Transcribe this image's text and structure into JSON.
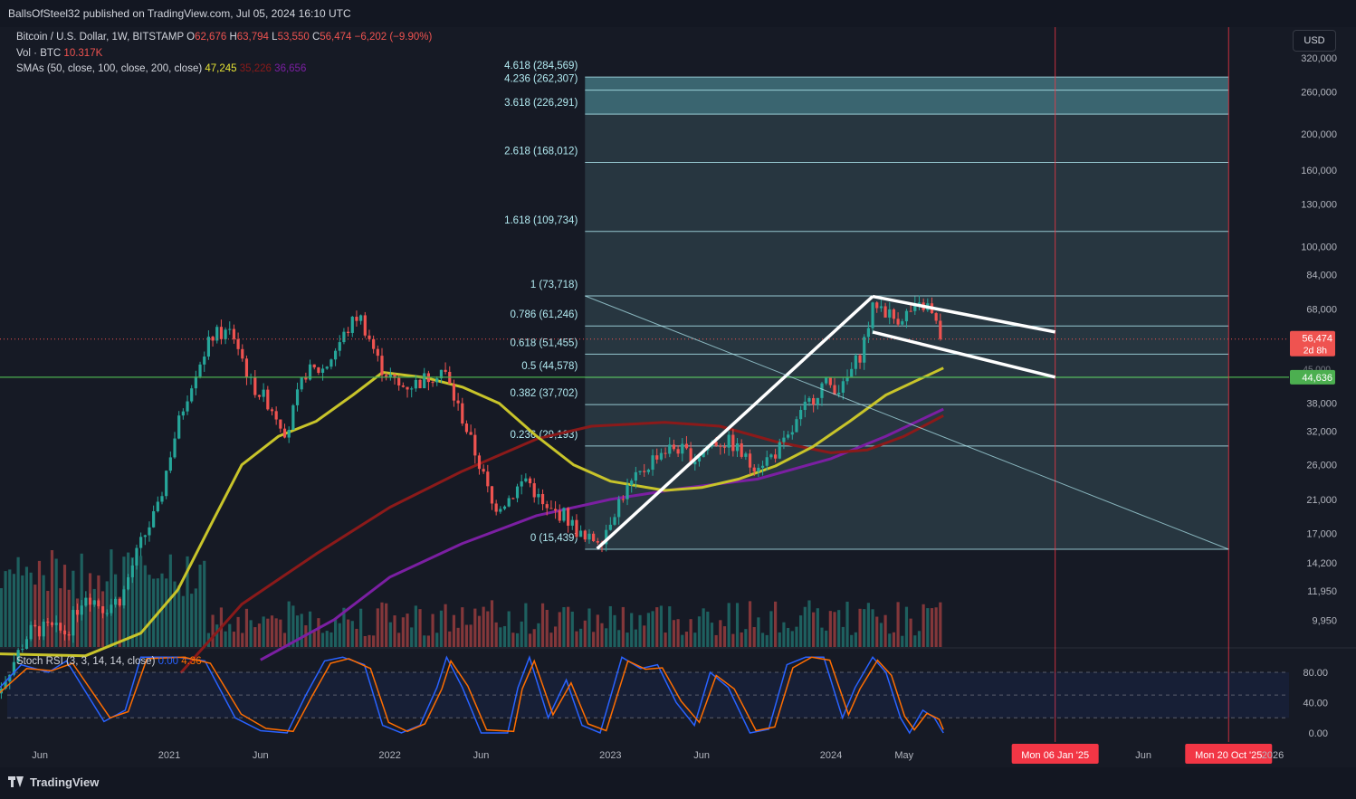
{
  "publisher": "BallsOfSteel32 published on TradingView.com, Jul 05, 2024 16:10 UTC",
  "legend": {
    "symbol": "Bitcoin / U.S. Dollar, 1W, BITSTAMP",
    "o_label": "O",
    "o": "62,676",
    "h_label": "H",
    "h": "63,794",
    "l_label": "L",
    "l": "53,550",
    "c_label": "C",
    "c": "56,474",
    "change": "−6,202 (−9.90%)",
    "vol_label": "Vol · BTC",
    "vol": "10.317K",
    "sma_label": "SMAs (50, close, 100, close, 200, close)",
    "sma50": "47,245",
    "sma100": "35,226",
    "sma200": "36,656",
    "stoch_label": "Stoch RSI (3, 3, 14, 14, close)",
    "stoch_k": "0.00",
    "stoch_d": "4.36"
  },
  "currency": "USD",
  "footer_brand": "TradingView",
  "colors": {
    "background": "#161a25",
    "up_candle": "#26a69a",
    "down_candle": "#ef5350",
    "sma50": "#c8c42a",
    "sma100": "#8b1a1a",
    "sma200": "#7b1fa2",
    "fib_zone": "#3b5961",
    "fib_line": "#b2ebf2",
    "support_line": "#4caf50",
    "stoch_k": "#2962ff",
    "stoch_d": "#ff6d00",
    "date_marker": "#f23645",
    "pattern_lines": "#ffffff"
  },
  "chart_data": {
    "type": "candlestick",
    "symbol": "BTCUSD",
    "timeframe": "1W",
    "y_scale": "log",
    "y_ticks": [
      320000,
      260000,
      200000,
      160000,
      130000,
      100000,
      84000,
      68000,
      56474,
      44636,
      38000,
      32000,
      26000,
      21000,
      17000,
      14200,
      11950,
      9950
    ],
    "y_tick_labels": [
      "320,000",
      "260,000",
      "200,000",
      "160,000",
      "130,000",
      "100,000",
      "84,000",
      "68,000",
      "56,474",
      "44,636",
      "38,000",
      "32,000",
      "26,000",
      "21,000",
      "17,000",
      "14,200",
      "11,950",
      "9,950"
    ],
    "x_tick_labels": [
      "Jun",
      "2021",
      "Jun",
      "2022",
      "Jun",
      "2023",
      "Jun",
      "2024",
      "May",
      "Mon 06 Jan '25",
      "Jun",
      "Mon 20 Oct '25",
      "2026"
    ],
    "x_ticks": [
      "2020-06",
      "2021-01",
      "2021-06",
      "2022-01",
      "2022-06",
      "2023-01",
      "2023-06",
      "2024-01",
      "2024-05",
      "2025-01-06",
      "2025-06",
      "2025-10-20",
      "2026-01"
    ],
    "last_price": 56474,
    "last_price_label": "56,474",
    "countdown": "2d 8h",
    "hidden_price_label": "45,000",
    "price_path": [
      [
        "2020-03-15",
        6000
      ],
      [
        "2020-04-15",
        7500
      ],
      [
        "2020-05-15",
        9300
      ],
      [
        "2020-06-15",
        9500
      ],
      [
        "2020-07-15",
        9200
      ],
      [
        "2020-08-15",
        11800
      ],
      [
        "2020-09-15",
        10700
      ],
      [
        "2020-10-15",
        11500
      ],
      [
        "2020-11-15",
        16000
      ],
      [
        "2020-12-15",
        20000
      ],
      [
        "2021-01-15",
        33000
      ],
      [
        "2021-02-15",
        47000
      ],
      [
        "2021-03-15",
        58000
      ],
      [
        "2021-04-15",
        59000
      ],
      [
        "2021-05-15",
        43000
      ],
      [
        "2021-06-15",
        38000
      ],
      [
        "2021-07-15",
        31500
      ],
      [
        "2021-08-15",
        46000
      ],
      [
        "2021-09-15",
        47000
      ],
      [
        "2021-10-15",
        57000
      ],
      [
        "2021-11-10",
        66000
      ],
      [
        "2021-12-15",
        48000
      ],
      [
        "2022-01-15",
        42000
      ],
      [
        "2022-02-15",
        43000
      ],
      [
        "2022-03-30",
        47000
      ],
      [
        "2022-04-15",
        40000
      ],
      [
        "2022-05-15",
        30000
      ],
      [
        "2022-06-20",
        20000
      ],
      [
        "2022-07-15",
        21000
      ],
      [
        "2022-08-15",
        24000
      ],
      [
        "2022-09-15",
        19500
      ],
      [
        "2022-10-15",
        19200
      ],
      [
        "2022-11-20",
        16200
      ],
      [
        "2022-12-20",
        16800
      ],
      [
        "2023-01-20",
        21500
      ],
      [
        "2023-02-20",
        24500
      ],
      [
        "2023-03-20",
        28000
      ],
      [
        "2023-04-20",
        29000
      ],
      [
        "2023-05-20",
        27000
      ],
      [
        "2023-06-20",
        30000
      ],
      [
        "2023-07-20",
        29800
      ],
      [
        "2023-08-20",
        26000
      ],
      [
        "2023-09-20",
        27000
      ],
      [
        "2023-10-20",
        30000
      ],
      [
        "2023-11-20",
        37000
      ],
      [
        "2023-12-20",
        43000
      ],
      [
        "2024-01-20",
        41500
      ],
      [
        "2024-02-20",
        52000
      ],
      [
        "2024-03-14",
        71000
      ],
      [
        "2024-04-15",
        64000
      ],
      [
        "2024-05-20",
        67500
      ],
      [
        "2024-06-07",
        70000
      ],
      [
        "2024-06-24",
        61000
      ],
      [
        "2024-07-05",
        56474
      ]
    ],
    "sma50_path": [
      [
        "2020-03-15",
        8100
      ],
      [
        "2020-08-15",
        8000
      ],
      [
        "2020-11-15",
        9200
      ],
      [
        "2021-01-15",
        12000
      ],
      [
        "2021-03-15",
        18500
      ],
      [
        "2021-05-01",
        26000
      ],
      [
        "2021-07-01",
        31000
      ],
      [
        "2021-09-01",
        34000
      ],
      [
        "2021-11-01",
        40000
      ],
      [
        "2021-12-20",
        46000
      ],
      [
        "2022-03-01",
        44500
      ],
      [
        "2022-05-01",
        42000
      ],
      [
        "2022-07-01",
        38000
      ],
      [
        "2022-09-01",
        31000
      ],
      [
        "2022-11-01",
        26000
      ],
      [
        "2023-01-01",
        23500
      ],
      [
        "2023-04-01",
        22200
      ],
      [
        "2023-06-01",
        22600
      ],
      [
        "2023-08-01",
        23800
      ],
      [
        "2023-10-01",
        25800
      ],
      [
        "2023-12-01",
        29000
      ],
      [
        "2024-02-01",
        34000
      ],
      [
        "2024-04-01",
        40000
      ],
      [
        "2024-07-05",
        47245
      ]
    ],
    "sma100_path": [
      [
        "2021-01-20",
        7200
      ],
      [
        "2021-05-01",
        11000
      ],
      [
        "2021-09-01",
        15000
      ],
      [
        "2022-01-01",
        20000
      ],
      [
        "2022-05-01",
        25000
      ],
      [
        "2022-09-01",
        30500
      ],
      [
        "2022-12-01",
        33000
      ],
      [
        "2023-04-01",
        33800
      ],
      [
        "2023-07-01",
        33000
      ],
      [
        "2023-10-01",
        30000
      ],
      [
        "2024-01-01",
        28000
      ],
      [
        "2024-03-01",
        28500
      ],
      [
        "2024-05-01",
        31000
      ],
      [
        "2024-07-05",
        35226
      ]
    ],
    "sma200_path": [
      [
        "2021-06-01",
        7800
      ],
      [
        "2021-10-01",
        10000
      ],
      [
        "2022-01-01",
        13000
      ],
      [
        "2022-05-01",
        16000
      ],
      [
        "2022-09-01",
        19000
      ],
      [
        "2023-01-01",
        21000
      ],
      [
        "2023-05-01",
        22500
      ],
      [
        "2023-09-01",
        23800
      ],
      [
        "2024-01-01",
        27000
      ],
      [
        "2024-04-01",
        31000
      ],
      [
        "2024-07-05",
        36656
      ]
    ],
    "fibonacci": {
      "from": [
        "2022-11-20",
        15439
      ],
      "to": [
        "2024-03-14",
        73718
      ],
      "end_date": "2025-10-20",
      "levels": [
        {
          "ratio": "0",
          "price": 15439,
          "label": "0 (15,439)"
        },
        {
          "ratio": "0.236",
          "price": 29193,
          "label": "0.236 (29,193)"
        },
        {
          "ratio": "0.382",
          "price": 37702,
          "label": "0.382 (37,702)"
        },
        {
          "ratio": "0.5",
          "price": 44578,
          "label": "0.5 (44,578)"
        },
        {
          "ratio": "0.618",
          "price": 51455,
          "label": "0.618 (51,455)"
        },
        {
          "ratio": "0.786",
          "price": 61246,
          "label": "0.786 (61,246)"
        },
        {
          "ratio": "1",
          "price": 73718,
          "label": "1 (73,718)"
        },
        {
          "ratio": "1.618",
          "price": 109734,
          "label": "1.618 (109,734)"
        },
        {
          "ratio": "2.618",
          "price": 168012,
          "label": "2.618 (168,012)"
        },
        {
          "ratio": "3.618",
          "price": 226291,
          "label": "3.618 (226,291)"
        },
        {
          "ratio": "4.236",
          "price": 262307,
          "label": "4.236 (262,307)"
        },
        {
          "ratio": "4.618",
          "price": 284569,
          "label": "4.618 (284,569)"
        }
      ]
    },
    "support_line": {
      "price": 44636,
      "label": "44,636"
    },
    "trend_lines": [
      {
        "name": "uptrend",
        "from": [
          "2022-12-10",
          15500
        ],
        "to": [
          "2024-03-10",
          73500
        ]
      },
      {
        "name": "flag-top",
        "from": [
          "2024-03-10",
          73500
        ],
        "to": [
          "2025-01-06",
          59000
        ]
      },
      {
        "name": "flag-bottom",
        "from": [
          "2024-03-10",
          59000
        ],
        "to": [
          "2025-01-06",
          44636
        ]
      },
      {
        "name": "diagonal",
        "from": [
          "2022-11-20",
          73718
        ],
        "to": [
          "2025-10-20",
          15439
        ]
      }
    ],
    "date_markers": [
      "2025-01-06",
      "2025-10-20"
    ],
    "stoch_rsi": {
      "ticks": [
        80,
        40,
        0
      ],
      "tick_labels": [
        "80.00",
        "40.00",
        "0.00"
      ],
      "bands": [
        80,
        50,
        20
      ],
      "k_path": [
        [
          "2020-03-15",
          50
        ],
        [
          "2020-05-01",
          90
        ],
        [
          "2020-06-15",
          80
        ],
        [
          "2020-07-15",
          95
        ],
        [
          "2020-09-15",
          15
        ],
        [
          "2020-10-20",
          30
        ],
        [
          "2020-11-15",
          100
        ],
        [
          "2021-01-15",
          100
        ],
        [
          "2021-03-01",
          95
        ],
        [
          "2021-04-20",
          20
        ],
        [
          "2021-06-01",
          3
        ],
        [
          "2021-07-15",
          0
        ],
        [
          "2021-08-15",
          50
        ],
        [
          "2021-09-15",
          95
        ],
        [
          "2021-10-15",
          100
        ],
        [
          "2021-11-20",
          90
        ],
        [
          "2021-12-20",
          10
        ],
        [
          "2022-01-20",
          0
        ],
        [
          "2022-02-20",
          10
        ],
        [
          "2022-03-20",
          60
        ],
        [
          "2022-04-05",
          100
        ],
        [
          "2022-05-01",
          60
        ],
        [
          "2022-06-01",
          0
        ],
        [
          "2022-07-15",
          0
        ],
        [
          "2022-08-01",
          60
        ],
        [
          "2022-08-20",
          100
        ],
        [
          "2022-09-20",
          20
        ],
        [
          "2022-10-20",
          70
        ],
        [
          "2022-11-15",
          10
        ],
        [
          "2022-12-15",
          0
        ],
        [
          "2023-01-20",
          100
        ],
        [
          "2023-02-20",
          85
        ],
        [
          "2023-03-20",
          90
        ],
        [
          "2023-04-20",
          40
        ],
        [
          "2023-05-20",
          10
        ],
        [
          "2023-06-15",
          80
        ],
        [
          "2023-07-15",
          60
        ],
        [
          "2023-08-20",
          0
        ],
        [
          "2023-09-20",
          5
        ],
        [
          "2023-10-20",
          90
        ],
        [
          "2023-11-20",
          100
        ],
        [
          "2023-12-20",
          100
        ],
        [
          "2024-01-20",
          20
        ],
        [
          "2024-02-10",
          60
        ],
        [
          "2024-03-10",
          100
        ],
        [
          "2024-04-01",
          80
        ],
        [
          "2024-04-25",
          20
        ],
        [
          "2024-05-10",
          0
        ],
        [
          "2024-06-01",
          30
        ],
        [
          "2024-06-20",
          20
        ],
        [
          "2024-07-05",
          0
        ]
      ],
      "d_path": [
        [
          "2020-03-15",
          45
        ],
        [
          "2020-05-10",
          85
        ],
        [
          "2020-06-20",
          82
        ],
        [
          "2020-07-25",
          92
        ],
        [
          "2020-09-25",
          20
        ],
        [
          "2020-10-25",
          28
        ],
        [
          "2020-11-25",
          98
        ],
        [
          "2021-01-25",
          100
        ],
        [
          "2021-03-10",
          92
        ],
        [
          "2021-04-30",
          25
        ],
        [
          "2021-06-10",
          6
        ],
        [
          "2021-07-25",
          2
        ],
        [
          "2021-08-25",
          48
        ],
        [
          "2021-09-25",
          92
        ],
        [
          "2021-10-25",
          98
        ],
        [
          "2021-11-30",
          85
        ],
        [
          "2021-12-30",
          14
        ],
        [
          "2022-01-30",
          2
        ],
        [
          "2022-02-28",
          12
        ],
        [
          "2022-03-28",
          58
        ],
        [
          "2022-04-12",
          95
        ],
        [
          "2022-05-10",
          62
        ],
        [
          "2022-06-10",
          4
        ],
        [
          "2022-07-25",
          2
        ],
        [
          "2022-08-08",
          58
        ],
        [
          "2022-08-28",
          95
        ],
        [
          "2022-09-28",
          24
        ],
        [
          "2022-10-28",
          66
        ],
        [
          "2022-11-25",
          12
        ],
        [
          "2022-12-25",
          3
        ],
        [
          "2023-01-30",
          95
        ],
        [
          "2023-02-28",
          84
        ],
        [
          "2023-03-28",
          86
        ],
        [
          "2023-04-28",
          42
        ],
        [
          "2023-05-28",
          14
        ],
        [
          "2023-06-25",
          76
        ],
        [
          "2023-07-25",
          58
        ],
        [
          "2023-08-30",
          3
        ],
        [
          "2023-09-30",
          8
        ],
        [
          "2023-10-30",
          86
        ],
        [
          "2023-11-30",
          100
        ],
        [
          "2023-12-30",
          96
        ],
        [
          "2024-01-30",
          24
        ],
        [
          "2024-02-18",
          58
        ],
        [
          "2024-03-18",
          96
        ],
        [
          "2024-04-10",
          76
        ],
        [
          "2024-05-02",
          22
        ],
        [
          "2024-05-18",
          4
        ],
        [
          "2024-06-08",
          26
        ],
        [
          "2024-06-28",
          18
        ],
        [
          "2024-07-05",
          4.36
        ]
      ]
    }
  }
}
